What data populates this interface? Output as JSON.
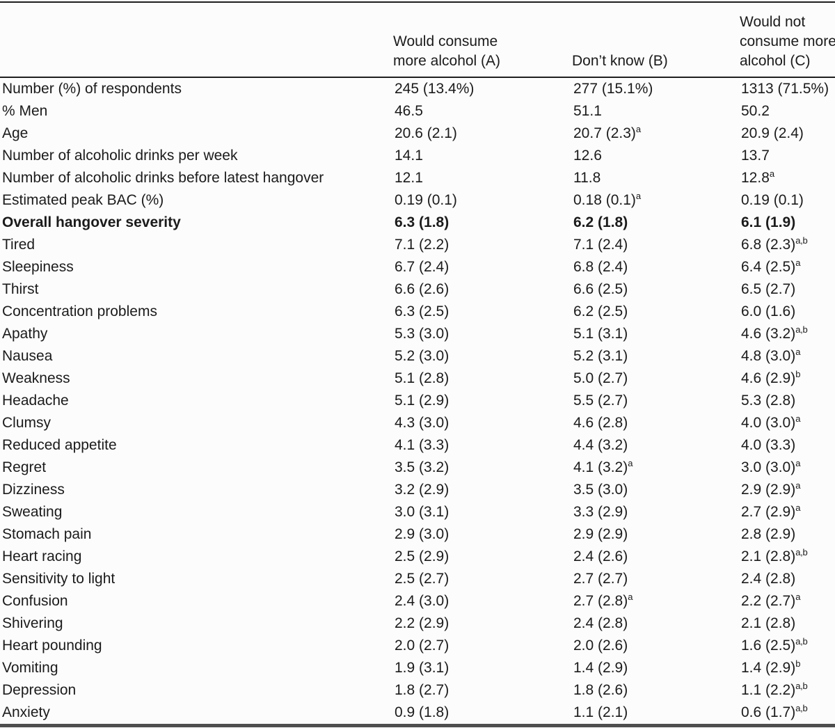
{
  "table": {
    "kind": "academic-summary-table",
    "text_color": "#1b1b1b",
    "rule_color": "#1e1e1e",
    "bottom_rule_color": "#4e4e4e",
    "background_color": "#fcfcfc",
    "stub_header": "",
    "columns": [
      {
        "id": "A",
        "header_lines": [
          "Would consume",
          "more alcohol (A)"
        ]
      },
      {
        "id": "B",
        "header_lines": [
          "Don’t know (B)"
        ]
      },
      {
        "id": "C",
        "header_lines": [
          "Would not",
          "consume more",
          "alcohol (C)"
        ]
      }
    ],
    "rows": [
      {
        "label": "Number (%) of respondents",
        "bold": false,
        "cells": [
          {
            "text": "245 (13.4%)",
            "sup": ""
          },
          {
            "text": "277 (15.1%)",
            "sup": ""
          },
          {
            "text": "1313 (71.5%)",
            "sup": ""
          }
        ]
      },
      {
        "label": "% Men",
        "bold": false,
        "cells": [
          {
            "text": "46.5",
            "sup": ""
          },
          {
            "text": "51.1",
            "sup": ""
          },
          {
            "text": "50.2",
            "sup": ""
          }
        ]
      },
      {
        "label": "Age",
        "bold": false,
        "cells": [
          {
            "text": "20.6 (2.1)",
            "sup": ""
          },
          {
            "text": "20.7 (2.3)",
            "sup": "a"
          },
          {
            "text": "20.9 (2.4)",
            "sup": ""
          }
        ]
      },
      {
        "label": "Number of alcoholic drinks per week",
        "bold": false,
        "cells": [
          {
            "text": "14.1",
            "sup": ""
          },
          {
            "text": "12.6",
            "sup": ""
          },
          {
            "text": "13.7",
            "sup": ""
          }
        ]
      },
      {
        "label": "Number of alcoholic drinks before latest hangover",
        "bold": false,
        "cells": [
          {
            "text": "12.1",
            "sup": ""
          },
          {
            "text": "11.8",
            "sup": ""
          },
          {
            "text": "12.8",
            "sup": "a"
          }
        ]
      },
      {
        "label": "Estimated peak BAC (%)",
        "bold": false,
        "cells": [
          {
            "text": "0.19 (0.1)",
            "sup": ""
          },
          {
            "text": "0.18 (0.1)",
            "sup": "a"
          },
          {
            "text": "0.19 (0.1)",
            "sup": ""
          }
        ]
      },
      {
        "label": "Overall hangover severity",
        "bold": true,
        "cells": [
          {
            "text": "6.3 (1.8)",
            "sup": ""
          },
          {
            "text": "6.2 (1.8)",
            "sup": ""
          },
          {
            "text": "6.1 (1.9)",
            "sup": ""
          }
        ]
      },
      {
        "label": "Tired",
        "bold": false,
        "cells": [
          {
            "text": "7.1 (2.2)",
            "sup": ""
          },
          {
            "text": "7.1 (2.4)",
            "sup": ""
          },
          {
            "text": "6.8 (2.3)",
            "sup": "a,b"
          }
        ]
      },
      {
        "label": "Sleepiness",
        "bold": false,
        "cells": [
          {
            "text": "6.7 (2.4)",
            "sup": ""
          },
          {
            "text": "6.8 (2.4)",
            "sup": ""
          },
          {
            "text": "6.4 (2.5)",
            "sup": "a"
          }
        ]
      },
      {
        "label": "Thirst",
        "bold": false,
        "cells": [
          {
            "text": "6.6 (2.6)",
            "sup": ""
          },
          {
            "text": "6.6 (2.5)",
            "sup": ""
          },
          {
            "text": "6.5 (2.7)",
            "sup": ""
          }
        ]
      },
      {
        "label": "Concentration problems",
        "bold": false,
        "cells": [
          {
            "text": "6.3 (2.5)",
            "sup": ""
          },
          {
            "text": "6.2 (2.5)",
            "sup": ""
          },
          {
            "text": "6.0 (1.6)",
            "sup": ""
          }
        ]
      },
      {
        "label": "Apathy",
        "bold": false,
        "cells": [
          {
            "text": "5.3 (3.0)",
            "sup": ""
          },
          {
            "text": "5.1 (3.1)",
            "sup": ""
          },
          {
            "text": "4.6 (3.2)",
            "sup": "a,b"
          }
        ]
      },
      {
        "label": "Nausea",
        "bold": false,
        "cells": [
          {
            "text": "5.2 (3.0)",
            "sup": ""
          },
          {
            "text": "5.2 (3.1)",
            "sup": ""
          },
          {
            "text": "4.8 (3.0)",
            "sup": "a"
          }
        ]
      },
      {
        "label": "Weakness",
        "bold": false,
        "cells": [
          {
            "text": "5.1 (2.8)",
            "sup": ""
          },
          {
            "text": "5.0 (2.7)",
            "sup": ""
          },
          {
            "text": "4.6 (2.9)",
            "sup": "b"
          }
        ]
      },
      {
        "label": "Headache",
        "bold": false,
        "cells": [
          {
            "text": "5.1 (2.9)",
            "sup": ""
          },
          {
            "text": "5.5 (2.7)",
            "sup": ""
          },
          {
            "text": "5.3 (2.8)",
            "sup": ""
          }
        ]
      },
      {
        "label": "Clumsy",
        "bold": false,
        "cells": [
          {
            "text": "4.3 (3.0)",
            "sup": ""
          },
          {
            "text": "4.6 (2.8)",
            "sup": ""
          },
          {
            "text": "4.0 (3.0)",
            "sup": "a"
          }
        ]
      },
      {
        "label": "Reduced appetite",
        "bold": false,
        "cells": [
          {
            "text": "4.1 (3.3)",
            "sup": ""
          },
          {
            "text": "4.4 (3.2)",
            "sup": ""
          },
          {
            "text": "4.0 (3.3)",
            "sup": ""
          }
        ]
      },
      {
        "label": "Regret",
        "bold": false,
        "cells": [
          {
            "text": "3.5 (3.2)",
            "sup": ""
          },
          {
            "text": "4.1 (3.2)",
            "sup": "a"
          },
          {
            "text": "3.0 (3.0)",
            "sup": "a"
          }
        ]
      },
      {
        "label": "Dizziness",
        "bold": false,
        "cells": [
          {
            "text": "3.2 (2.9)",
            "sup": ""
          },
          {
            "text": "3.5 (3.0)",
            "sup": ""
          },
          {
            "text": "2.9 (2.9)",
            "sup": "a"
          }
        ]
      },
      {
        "label": "Sweating",
        "bold": false,
        "cells": [
          {
            "text": "3.0 (3.1)",
            "sup": ""
          },
          {
            "text": "3.3 (2.9)",
            "sup": ""
          },
          {
            "text": "2.7 (2.9)",
            "sup": "a"
          }
        ]
      },
      {
        "label": "Stomach pain",
        "bold": false,
        "cells": [
          {
            "text": "2.9 (3.0)",
            "sup": ""
          },
          {
            "text": "2.9 (2.9)",
            "sup": ""
          },
          {
            "text": "2.8 (2.9)",
            "sup": ""
          }
        ]
      },
      {
        "label": "Heart racing",
        "bold": false,
        "cells": [
          {
            "text": "2.5 (2.9)",
            "sup": ""
          },
          {
            "text": "2.4 (2.6)",
            "sup": ""
          },
          {
            "text": "2.1 (2.8)",
            "sup": "a,b"
          }
        ]
      },
      {
        "label": "Sensitivity to light",
        "bold": false,
        "cells": [
          {
            "text": "2.5 (2.7)",
            "sup": ""
          },
          {
            "text": "2.7 (2.7)",
            "sup": ""
          },
          {
            "text": "2.4 (2.8)",
            "sup": ""
          }
        ]
      },
      {
        "label": "Confusion",
        "bold": false,
        "cells": [
          {
            "text": "2.4 (3.0)",
            "sup": ""
          },
          {
            "text": "2.7 (2.8)",
            "sup": "a"
          },
          {
            "text": "2.2 (2.7)",
            "sup": "a"
          }
        ]
      },
      {
        "label": "Shivering",
        "bold": false,
        "cells": [
          {
            "text": "2.2 (2.9)",
            "sup": ""
          },
          {
            "text": "2.4 (2.8)",
            "sup": ""
          },
          {
            "text": "2.1 (2.8)",
            "sup": ""
          }
        ]
      },
      {
        "label": "Heart pounding",
        "bold": false,
        "cells": [
          {
            "text": "2.0 (2.7)",
            "sup": ""
          },
          {
            "text": "2.0 (2.6)",
            "sup": ""
          },
          {
            "text": "1.6 (2.5)",
            "sup": "a,b"
          }
        ]
      },
      {
        "label": "Vomiting",
        "bold": false,
        "cells": [
          {
            "text": "1.9 (3.1)",
            "sup": ""
          },
          {
            "text": "1.4 (2.9)",
            "sup": ""
          },
          {
            "text": "1.4 (2.9)",
            "sup": "b"
          }
        ]
      },
      {
        "label": "Depression",
        "bold": false,
        "cells": [
          {
            "text": "1.8 (2.7)",
            "sup": ""
          },
          {
            "text": "1.8 (2.6)",
            "sup": ""
          },
          {
            "text": "1.1 (2.2)",
            "sup": "a,b"
          }
        ]
      },
      {
        "label": "Anxiety",
        "bold": false,
        "cells": [
          {
            "text": "0.9 (1.8)",
            "sup": ""
          },
          {
            "text": "1.1 (2.1)",
            "sup": ""
          },
          {
            "text": "0.6 (1.7)",
            "sup": "a,b"
          }
        ]
      }
    ]
  }
}
